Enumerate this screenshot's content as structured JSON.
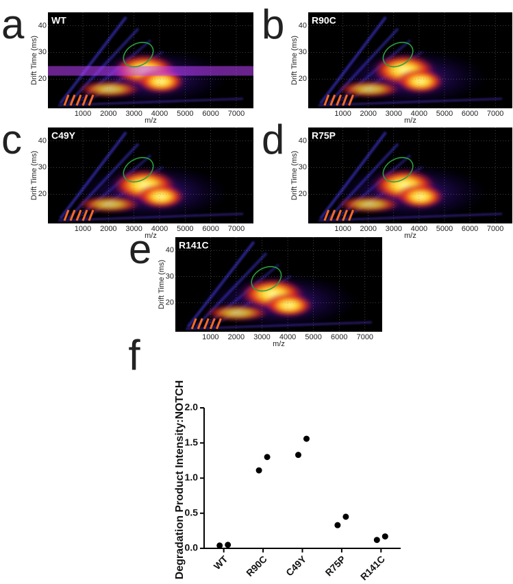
{
  "chart_data": [
    {
      "type": "heatmap",
      "panel_label": "a",
      "title": "WT",
      "xlabel": "m/z",
      "ylabel": "Drift Time (ms)",
      "xlim": [
        -366,
        7670
      ],
      "xticks": [
        1000,
        2000,
        3000,
        4000,
        5000,
        6000,
        7000
      ],
      "ylim": [
        9,
        45
      ],
      "yticks": [
        20,
        30,
        40
      ],
      "highlight_band": true
    },
    {
      "type": "heatmap",
      "panel_label": "b",
      "title": "R90C",
      "xlabel": "m/z",
      "ylabel": "Drift Time (ms)",
      "xlim": [
        -366,
        7670
      ],
      "xticks": [
        1000,
        2000,
        3000,
        4000,
        5000,
        6000,
        7000
      ],
      "ylim": [
        9,
        45
      ],
      "yticks": [
        20,
        30,
        40
      ]
    },
    {
      "type": "heatmap",
      "panel_label": "c",
      "title": "C49Y",
      "xlabel": "m/z",
      "ylabel": "Drift Time (ms)",
      "xlim": [
        -366,
        7670
      ],
      "xticks": [
        1000,
        2000,
        3000,
        4000,
        5000,
        6000,
        7000
      ],
      "ylim": [
        9,
        45
      ],
      "yticks": [
        20,
        30,
        40
      ]
    },
    {
      "type": "heatmap",
      "panel_label": "d",
      "title": "R75P",
      "xlabel": "m/z",
      "ylabel": "Drift Time (ms)",
      "xlim": [
        -366,
        7670
      ],
      "xticks": [
        1000,
        2000,
        3000,
        4000,
        5000,
        6000,
        7000
      ],
      "ylim": [
        9,
        45
      ],
      "yticks": [
        20,
        30,
        40
      ]
    },
    {
      "type": "heatmap",
      "panel_label": "e",
      "title": "R141C",
      "xlabel": "m/z",
      "ylabel": "Drift Time (ms)",
      "xlim": [
        -366,
        7670
      ],
      "xticks": [
        1000,
        2000,
        3000,
        4000,
        5000,
        6000,
        7000
      ],
      "ylim": [
        9,
        45
      ],
      "yticks": [
        20,
        30,
        40
      ]
    },
    {
      "type": "scatter",
      "panel_label": "f",
      "ylabel": "Degradation Product Intensity:NOTCH",
      "categories": [
        "WT",
        "R90C",
        "C49Y",
        "R75P",
        "R141C"
      ],
      "series": [
        {
          "color": "#000000",
          "values": [
            0.04,
            1.11,
            1.33,
            0.33,
            0.12
          ]
        },
        {
          "color": "#000000",
          "values": [
            0.05,
            1.3,
            1.56,
            0.45,
            0.17
          ]
        }
      ],
      "ylim": [
        0,
        2
      ],
      "yticks": [
        {
          "value": 0,
          "label": "0.0"
        },
        {
          "value": 0.5,
          "label": "0.5"
        },
        {
          "value": 1,
          "label": "1.0"
        },
        {
          "value": 1.5,
          "label": "1.5"
        },
        {
          "value": 2,
          "label": "2.0"
        }
      ]
    }
  ]
}
